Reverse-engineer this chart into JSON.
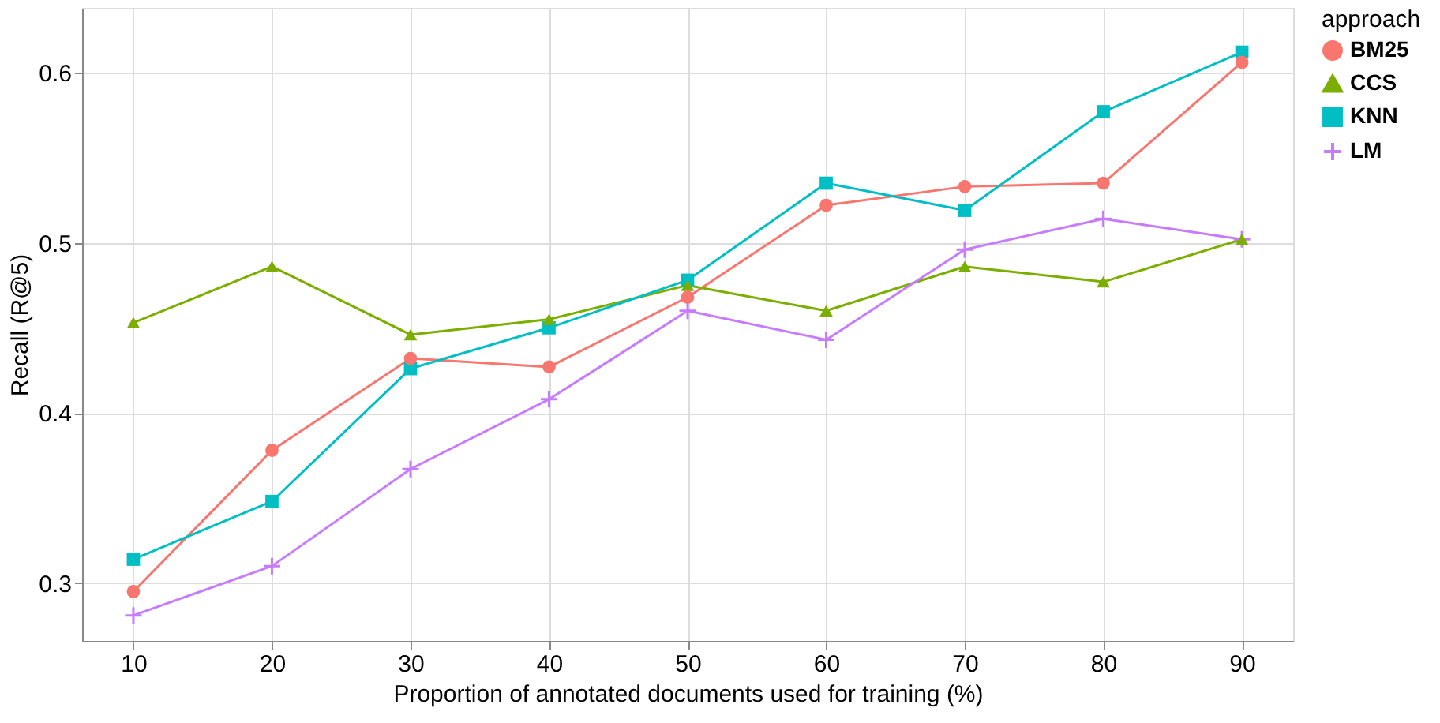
{
  "chart_data": {
    "type": "line",
    "xlabel": "Proportion of annotated documents used for training (%)",
    "ylabel": "Recall (R@5)",
    "legend_title": "approach",
    "x": [
      10,
      20,
      30,
      40,
      50,
      60,
      70,
      80,
      90
    ],
    "series": [
      {
        "name": "BM25",
        "color": "#f8766d",
        "marker": "circle",
        "values": [
          0.295,
          0.378,
          0.432,
          0.427,
          0.468,
          0.522,
          0.533,
          0.535,
          0.606
        ]
      },
      {
        "name": "CCS",
        "color": "#7cae00",
        "marker": "triangle",
        "values": [
          0.453,
          0.486,
          0.446,
          0.455,
          0.475,
          0.46,
          0.486,
          0.477,
          0.502
        ]
      },
      {
        "name": "KNN",
        "color": "#00bfc4",
        "marker": "square",
        "values": [
          0.314,
          0.348,
          0.426,
          0.45,
          0.478,
          0.535,
          0.519,
          0.577,
          0.612
        ]
      },
      {
        "name": "LM",
        "color": "#c77cff",
        "marker": "cross",
        "values": [
          0.281,
          0.31,
          0.367,
          0.408,
          0.46,
          0.443,
          0.496,
          0.514,
          0.502
        ]
      }
    ],
    "xlim": [
      6.3,
      93.7
    ],
    "ylim": [
      0.266,
      0.638
    ],
    "xticks": [
      10,
      20,
      30,
      40,
      50,
      60,
      70,
      80,
      90
    ],
    "yticks": [
      0.3,
      0.4,
      0.5,
      0.6
    ],
    "grid": true,
    "legend": "right",
    "line_style": "solid"
  }
}
